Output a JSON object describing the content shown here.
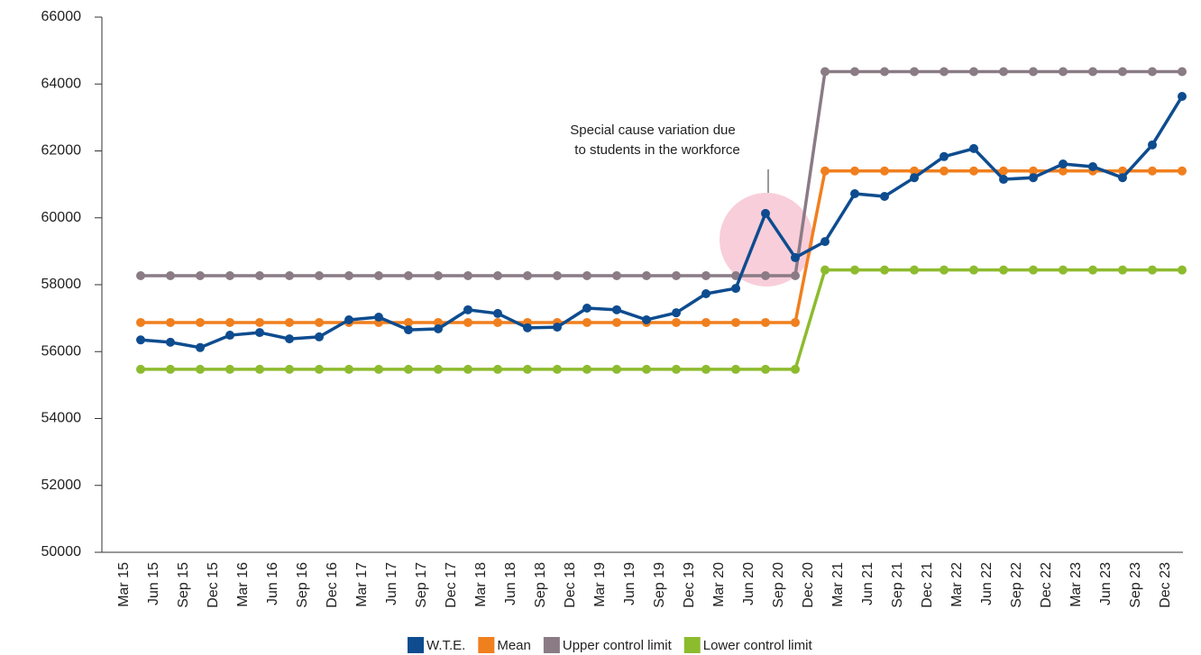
{
  "chart_data": {
    "type": "line",
    "categories": [
      "Mar 15",
      "Jun 15",
      "Sep 15",
      "Dec 15",
      "Mar 16",
      "Jun 16",
      "Sep 16",
      "Dec 16",
      "Mar 17",
      "Jun 17",
      "Sep 17",
      "Dec 17",
      "Mar 18",
      "Jun 18",
      "Sep 18",
      "Dec 18",
      "Mar 19",
      "Jun 19",
      "Sep 19",
      "Dec 19",
      "Mar 20",
      "Jun 20",
      "Sep 20",
      "Dec 20",
      "Mar 21",
      "Jun 21",
      "Sep 21",
      "Dec 21",
      "Mar 22",
      "Jun 22",
      "Sep 22",
      "Dec 22",
      "Mar 23",
      "Jun 23",
      "Sep 23",
      "Dec 23"
    ],
    "series": [
      {
        "name": "W.T.E.",
        "color": "#0e4c8f",
        "values": [
          56350,
          56280,
          56120,
          56490,
          56570,
          56380,
          56440,
          56950,
          57030,
          56650,
          56680,
          57250,
          57140,
          56710,
          56730,
          57300,
          57250,
          56950,
          57160,
          57730,
          57890,
          60130,
          58810,
          59290,
          60720,
          60640,
          61200,
          61830,
          62070,
          61150,
          61200,
          61610,
          61530,
          61200,
          62180,
          63630
        ]
      },
      {
        "name": "Mean",
        "color": "#f07f1e",
        "values": [
          56870,
          56870,
          56870,
          56870,
          56870,
          56870,
          56870,
          56870,
          56870,
          56870,
          56870,
          56870,
          56870,
          56870,
          56870,
          56870,
          56870,
          56870,
          56870,
          56870,
          56870,
          56870,
          56870,
          61400,
          61400,
          61400,
          61400,
          61400,
          61400,
          61400,
          61400,
          61400,
          61400,
          61400,
          61400,
          61400
        ]
      },
      {
        "name": "Upper control limit",
        "color": "#8a7b85",
        "values": [
          58270,
          58270,
          58270,
          58270,
          58270,
          58270,
          58270,
          58270,
          58270,
          58270,
          58270,
          58270,
          58270,
          58270,
          58270,
          58270,
          58270,
          58270,
          58270,
          58270,
          58270,
          58270,
          58270,
          64370,
          64370,
          64370,
          64370,
          64370,
          64370,
          64370,
          64370,
          64370,
          64370,
          64370,
          64370,
          64370
        ]
      },
      {
        "name": "Lower control limit",
        "color": "#8dbb2e",
        "values": [
          55470,
          55470,
          55470,
          55470,
          55470,
          55470,
          55470,
          55470,
          55470,
          55470,
          55470,
          55470,
          55470,
          55470,
          55470,
          55470,
          55470,
          55470,
          55470,
          55470,
          55470,
          55470,
          55470,
          58440,
          58440,
          58440,
          58440,
          58440,
          58440,
          58440,
          58440,
          58440,
          58440,
          58440,
          58440,
          58440
        ]
      }
    ],
    "annotation": [
      "Special cause variation due",
      "to students in the workforce"
    ],
    "ylim": [
      50000,
      66000
    ],
    "yticks": [
      50000,
      52000,
      54000,
      56000,
      58000,
      60000,
      62000,
      64000,
      66000
    ],
    "grid": false,
    "legend": "bottom"
  }
}
